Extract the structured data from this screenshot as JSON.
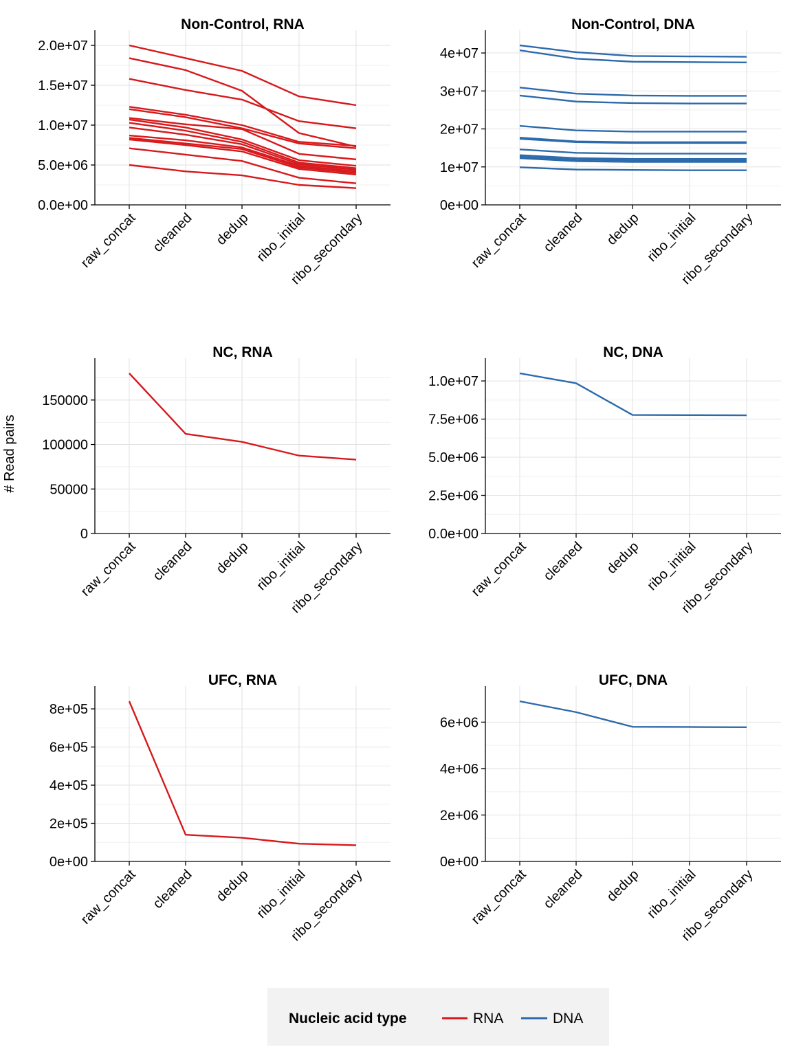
{
  "ylabel": "# Read pairs",
  "legend": {
    "title": "Nucleic acid type",
    "placement": "bottom",
    "items": [
      {
        "label": "RNA",
        "color": "#d7191c"
      },
      {
        "label": "DNA",
        "color": "#2c6aab"
      }
    ]
  },
  "chart_data": [
    {
      "type": "line",
      "title": "Non-Control, RNA",
      "categories": [
        "raw_concat",
        "cleaned",
        "dedup",
        "ribo_initial",
        "ribo_secondary"
      ],
      "ylim": [
        0,
        20000000
      ],
      "yticks": [
        0,
        5000000,
        10000000,
        15000000,
        20000000
      ],
      "ytick_labels": [
        "0.0e+00",
        "5.0e+06",
        "1.0e+07",
        "1.5e+07",
        "2.0e+07"
      ],
      "color": "#d7191c",
      "series": [
        {
          "values": [
            20000000,
            18400000,
            16800000,
            13600000,
            12500000
          ]
        },
        {
          "values": [
            18400000,
            16900000,
            14300000,
            9000000,
            7300000
          ]
        },
        {
          "values": [
            15800000,
            14400000,
            13200000,
            10500000,
            9600000
          ]
        },
        {
          "values": [
            12300000,
            11300000,
            10000000,
            7900000,
            7400000
          ]
        },
        {
          "values": [
            12000000,
            11000000,
            9600000,
            7700000,
            7100000
          ]
        },
        {
          "values": [
            10900000,
            10100000,
            9500000,
            6400000,
            5700000
          ]
        },
        {
          "values": [
            10700000,
            9700000,
            8200000,
            5600000,
            4900000
          ]
        },
        {
          "values": [
            10300000,
            9300000,
            7900000,
            5300000,
            4600000
          ]
        },
        {
          "values": [
            9700000,
            8800000,
            7600000,
            5100000,
            4400000
          ]
        },
        {
          "values": [
            8700000,
            8100000,
            7200000,
            4900000,
            4200000
          ]
        },
        {
          "values": [
            8400000,
            7700000,
            7000000,
            4700000,
            4000000
          ]
        },
        {
          "values": [
            8200000,
            7500000,
            6700000,
            4500000,
            3800000
          ]
        },
        {
          "values": [
            7100000,
            6300000,
            5500000,
            3400000,
            2700000
          ]
        },
        {
          "values": [
            5000000,
            4200000,
            3700000,
            2500000,
            2100000
          ]
        }
      ]
    },
    {
      "type": "line",
      "title": "Non-Control, DNA",
      "categories": [
        "raw_concat",
        "cleaned",
        "dedup",
        "ribo_initial",
        "ribo_secondary"
      ],
      "ylim": [
        0,
        42000000
      ],
      "yticks": [
        0,
        10000000,
        20000000,
        30000000,
        40000000
      ],
      "ytick_labels": [
        "0e+00",
        "1e+07",
        "2e+07",
        "3e+07",
        "4e+07"
      ],
      "color": "#2c6aab",
      "series": [
        {
          "values": [
            42000000,
            40200000,
            39200000,
            39100000,
            39000000
          ]
        },
        {
          "values": [
            40700000,
            38500000,
            37700000,
            37600000,
            37500000
          ]
        },
        {
          "values": [
            30900000,
            29300000,
            28800000,
            28700000,
            28700000
          ]
        },
        {
          "values": [
            28800000,
            27200000,
            26800000,
            26700000,
            26700000
          ]
        },
        {
          "values": [
            20800000,
            19600000,
            19300000,
            19300000,
            19300000
          ]
        },
        {
          "values": [
            17700000,
            16700000,
            16500000,
            16500000,
            16500000
          ]
        },
        {
          "values": [
            17400000,
            16500000,
            16300000,
            16300000,
            16300000
          ]
        },
        {
          "values": [
            14600000,
            13700000,
            13500000,
            13500000,
            13500000
          ]
        },
        {
          "values": [
            13100000,
            12300000,
            12100000,
            12100000,
            12100000
          ]
        },
        {
          "values": [
            12700000,
            11900000,
            11700000,
            11700000,
            11700000
          ]
        },
        {
          "values": [
            12300000,
            11500000,
            11300000,
            11300000,
            11300000
          ]
        },
        {
          "values": [
            9900000,
            9300000,
            9200000,
            9100000,
            9100000
          ]
        }
      ]
    },
    {
      "type": "line",
      "title": "NC, RNA",
      "categories": [
        "raw_concat",
        "cleaned",
        "dedup",
        "ribo_initial",
        "ribo_secondary"
      ],
      "ylim": [
        0,
        180000
      ],
      "yticks": [
        0,
        50000,
        100000,
        150000
      ],
      "ytick_labels": [
        "0",
        "50000",
        "100000",
        "150000"
      ],
      "color": "#d7191c",
      "series": [
        {
          "values": [
            180000,
            112000,
            103000,
            87500,
            83000
          ]
        }
      ]
    },
    {
      "type": "line",
      "title": "NC, DNA",
      "categories": [
        "raw_concat",
        "cleaned",
        "dedup",
        "ribo_initial",
        "ribo_secondary"
      ],
      "ylim": [
        0,
        10500000
      ],
      "yticks": [
        0,
        2500000,
        5000000,
        7500000,
        10000000
      ],
      "ytick_labels": [
        "0.0e+00",
        "2.5e+06",
        "5.0e+06",
        "7.5e+06",
        "1.0e+07"
      ],
      "color": "#2c6aab",
      "series": [
        {
          "values": [
            10500000,
            9850000,
            7770000,
            7760000,
            7750000
          ]
        }
      ]
    },
    {
      "type": "line",
      "title": "UFC, RNA",
      "categories": [
        "raw_concat",
        "cleaned",
        "dedup",
        "ribo_initial",
        "ribo_secondary"
      ],
      "ylim": [
        0,
        840000
      ],
      "yticks": [
        0,
        200000,
        400000,
        600000,
        800000
      ],
      "ytick_labels": [
        "0e+00",
        "2e+05",
        "4e+05",
        "6e+05",
        "8e+05"
      ],
      "color": "#d7191c",
      "series": [
        {
          "values": [
            840000,
            140000,
            124000,
            93000,
            85000
          ]
        }
      ]
    },
    {
      "type": "line",
      "title": "UFC, DNA",
      "categories": [
        "raw_concat",
        "cleaned",
        "dedup",
        "ribo_initial",
        "ribo_secondary"
      ],
      "ylim": [
        0,
        6900000
      ],
      "yticks": [
        0,
        2000000,
        4000000,
        6000000
      ],
      "ytick_labels": [
        "0e+00",
        "2e+06",
        "4e+06",
        "6e+06"
      ],
      "color": "#2c6aab",
      "series": [
        {
          "values": [
            6900000,
            6430000,
            5800000,
            5790000,
            5780000
          ]
        }
      ]
    }
  ]
}
